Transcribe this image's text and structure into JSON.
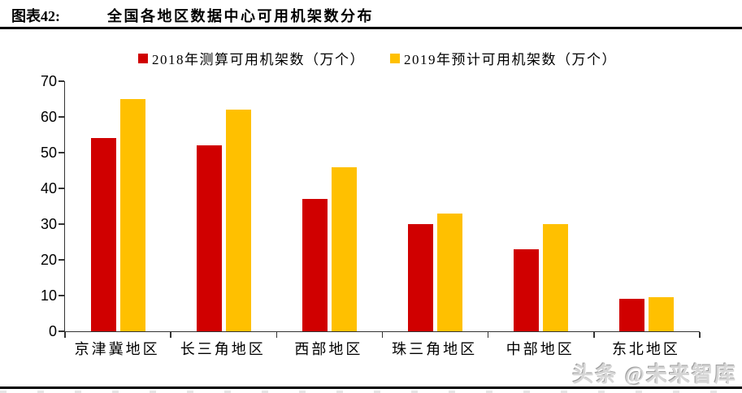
{
  "header": {
    "figure_label": "图表42:",
    "title": "全国各地区数据中心可用机架数分布"
  },
  "colors": {
    "series_2018": "#D00000",
    "series_2019": "#FFC000",
    "axis": "#333333",
    "rule": "#000000"
  },
  "chart_data": {
    "type": "bar",
    "categories": [
      "京津冀地区",
      "长三角地区",
      "西部地区",
      "珠三角地区",
      "中部地区",
      "东北地区"
    ],
    "series": [
      {
        "name": "2018年测算可用机架数（万个）",
        "color": "#D00000",
        "values": [
          54,
          52,
          37,
          30,
          23,
          9
        ]
      },
      {
        "name": "2019年预计可用机架数（万个）",
        "color": "#FFC000",
        "values": [
          65,
          62,
          46,
          33,
          30,
          9.5
        ]
      }
    ],
    "title": "全国各地区数据中心可用机架数分布",
    "xlabel": "",
    "ylabel": "",
    "ylim": [
      0,
      70
    ],
    "yticks": [
      0,
      10,
      20,
      30,
      40,
      50,
      60,
      70
    ],
    "grid": false,
    "legend_position": "top"
  },
  "watermark": "头条 @未来智库"
}
